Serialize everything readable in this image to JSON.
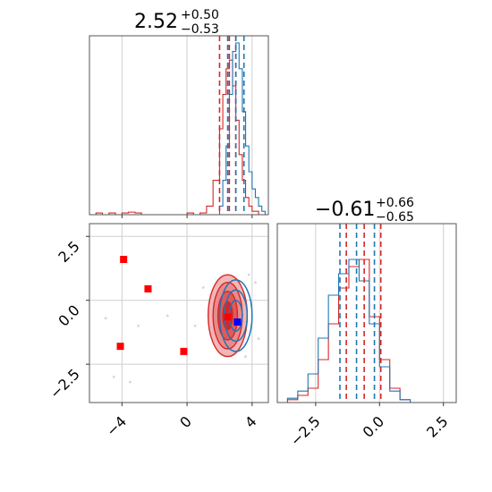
{
  "chart_data": [
    {
      "type": "histogram",
      "panel": "top-left",
      "title_value": "2.52",
      "title_plus": "+0.50",
      "title_minus": "−0.53",
      "xlim": [
        -6,
        5
      ],
      "xticks": [
        -4,
        0,
        4
      ],
      "series": [
        {
          "color": "#d62728",
          "bins": [
            -6.0,
            -5.6,
            -5.2,
            -4.8,
            -4.4,
            -4.0,
            -3.6,
            -3.2,
            -2.8,
            -2.4,
            -2.0,
            -1.6,
            -1.2,
            -0.8,
            -0.4,
            0.0,
            0.4,
            0.8,
            1.2,
            1.6,
            2.0,
            2.2,
            2.4,
            2.6,
            2.8,
            3.0,
            3.2,
            3.4,
            3.6,
            3.8,
            4.0,
            4.4,
            4.8
          ],
          "counts": [
            0,
            0.01,
            0,
            0.01,
            0,
            0.01,
            0.015,
            0.01,
            0,
            0,
            0,
            0,
            0,
            0,
            0,
            0.01,
            0,
            0.01,
            0.05,
            0.2,
            0.5,
            0.7,
            0.85,
            0.9,
            0.75,
            0.55,
            0.35,
            0.2,
            0.1,
            0.05,
            0.02,
            0
          ]
        },
        {
          "color": "#1f77b4",
          "bins": [
            1.6,
            2.0,
            2.2,
            2.4,
            2.6,
            2.8,
            3.0,
            3.2,
            3.4,
            3.6,
            3.8,
            4.0,
            4.2,
            4.4,
            4.6,
            4.8,
            5.0
          ],
          "counts": [
            0,
            0.05,
            0.2,
            0.4,
            0.7,
            0.95,
            1.0,
            0.85,
            0.6,
            0.4,
            0.25,
            0.15,
            0.1,
            0.05,
            0.02,
            0
          ]
        }
      ],
      "quantile_lines": [
        {
          "x": 2.0,
          "color": "#d62728"
        },
        {
          "x": 2.6,
          "color": "#d62728"
        },
        {
          "x": 3.0,
          "color": "#d62728"
        },
        {
          "x": 2.5,
          "color": "#1f77b4"
        },
        {
          "x": 3.0,
          "color": "#1f77b4"
        },
        {
          "x": 3.5,
          "color": "#1f77b4"
        }
      ]
    },
    {
      "type": "contour-scatter",
      "panel": "bottom-left",
      "xlim": [
        -6,
        5
      ],
      "ylim": [
        -4,
        3
      ],
      "xticks": [
        -4,
        0,
        4
      ],
      "yticks": [
        2.5,
        0.0,
        -2.5
      ],
      "xtick_labels": [
        "−4",
        "0",
        "4"
      ],
      "ytick_labels": [
        "2.5",
        "0.0",
        "−2.5"
      ],
      "red_contours": [
        {
          "cx": 2.5,
          "cy": -0.6,
          "rx": 1.2,
          "ry": 1.6,
          "fill": "#f3b6b6"
        },
        {
          "cx": 2.5,
          "cy": -0.6,
          "rx": 0.9,
          "ry": 1.3,
          "fill": "#ea8a8a"
        },
        {
          "cx": 2.5,
          "cy": -0.6,
          "rx": 0.6,
          "ry": 0.95,
          "fill": "#e05a5a"
        },
        {
          "cx": 2.5,
          "cy": -0.6,
          "rx": 0.3,
          "ry": 0.55,
          "fill": "#d62728"
        }
      ],
      "blue_contours": [
        {
          "cx": 3.0,
          "cy": -0.6,
          "rx": 1.0,
          "ry": 1.4
        },
        {
          "cx": 3.0,
          "cy": -0.6,
          "rx": 0.7,
          "ry": 1.0
        },
        {
          "cx": 3.0,
          "cy": -0.6,
          "rx": 0.4,
          "ry": 0.6
        }
      ],
      "red_markers": [
        {
          "x": -3.9,
          "y": 1.6
        },
        {
          "x": -2.4,
          "y": 0.45
        },
        {
          "x": -4.1,
          "y": -1.8
        },
        {
          "x": -0.2,
          "y": -2.0
        },
        {
          "x": 2.5,
          "y": -0.65
        }
      ],
      "blue_markers": [
        {
          "x": 3.1,
          "y": -0.85
        }
      ],
      "scatter_points": [
        {
          "x": -5.0,
          "y": -0.7
        },
        {
          "x": -3.0,
          "y": -1.0
        },
        {
          "x": -1.2,
          "y": -0.6
        },
        {
          "x": -4.5,
          "y": -3.0
        },
        {
          "x": -3.5,
          "y": -3.2
        },
        {
          "x": 1.0,
          "y": 0.5
        },
        {
          "x": 0.5,
          "y": -1.0
        },
        {
          "x": 3.8,
          "y": 1.0
        },
        {
          "x": 4.2,
          "y": 0.7
        },
        {
          "x": 3.6,
          "y": -2.2
        },
        {
          "x": 4.4,
          "y": -1.5
        }
      ]
    },
    {
      "type": "histogram",
      "panel": "bottom-right",
      "title_value": "−0.61",
      "title_plus": "+0.66",
      "title_minus": "−0.65",
      "xlim": [
        -4,
        3
      ],
      "xticks": [
        -2.5,
        0.0,
        2.5
      ],
      "xtick_labels": [
        "−2.5",
        "0.0",
        "2.5"
      ],
      "series": [
        {
          "color": "#d62728",
          "bins": [
            -3.6,
            -3.2,
            -2.8,
            -2.4,
            -2.0,
            -1.6,
            -1.2,
            -0.8,
            -0.4,
            0.0,
            0.4,
            0.8,
            1.2
          ],
          "counts": [
            0.02,
            0.05,
            0.1,
            0.3,
            0.55,
            0.8,
            0.95,
            1.0,
            0.6,
            0.3,
            0.1,
            0.02
          ]
        },
        {
          "color": "#1f77b4",
          "bins": [
            -3.6,
            -3.2,
            -2.8,
            -2.4,
            -2.0,
            -1.6,
            -1.2,
            -0.8,
            -0.4,
            0.0,
            0.4,
            0.8,
            1.2
          ],
          "counts": [
            0.03,
            0.08,
            0.2,
            0.45,
            0.75,
            0.9,
            1.0,
            0.85,
            0.55,
            0.25,
            0.08,
            0.02
          ]
        }
      ],
      "quantile_lines": [
        {
          "x": -1.3,
          "color": "#d62728"
        },
        {
          "x": -0.6,
          "color": "#d62728"
        },
        {
          "x": 0.05,
          "color": "#d62728"
        },
        {
          "x": -1.55,
          "color": "#1f77b4"
        },
        {
          "x": -0.9,
          "color": "#1f77b4"
        },
        {
          "x": -0.2,
          "color": "#1f77b4"
        }
      ]
    }
  ]
}
